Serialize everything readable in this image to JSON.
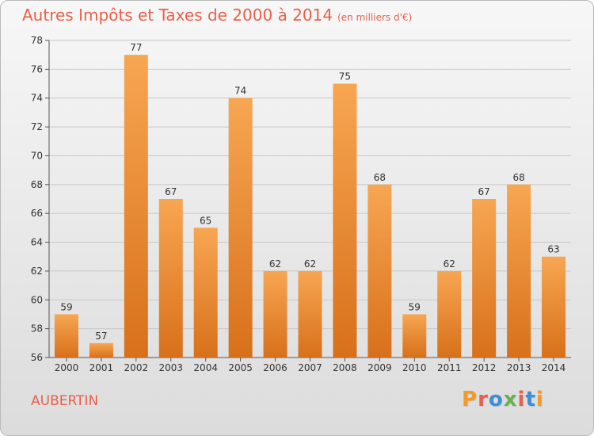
{
  "title": {
    "main": "Autres Impôts et Taxes de 2000 à 2014",
    "unit": "(en milliers d'€)"
  },
  "commune": "AUBERTIN",
  "logo": {
    "text": "Proxiti",
    "colors": [
      "#f09a28",
      "#e8604a",
      "#3a8fd6",
      "#6ab04c",
      "#e8604a",
      "#3a8fd6",
      "#f09a28"
    ]
  },
  "colors": {
    "bar_top": "#f7a652",
    "bar_bottom": "#d8701a",
    "title": "#e8604a",
    "axis": "#555555",
    "grid": "#c8c8c8"
  },
  "chart_data": {
    "type": "bar",
    "categories": [
      "2000",
      "2001",
      "2002",
      "2003",
      "2004",
      "2005",
      "2006",
      "2007",
      "2008",
      "2009",
      "2010",
      "2011",
      "2012",
      "2013",
      "2014"
    ],
    "values": [
      59,
      57,
      77,
      67,
      65,
      74,
      62,
      62,
      75,
      68,
      59,
      62,
      67,
      68,
      63
    ],
    "title": "Autres Impôts et Taxes de 2000 à 2014",
    "xlabel": "",
    "ylabel": "",
    "ylim": [
      56,
      78
    ],
    "yticks": [
      56,
      58,
      60,
      62,
      64,
      66,
      68,
      70,
      72,
      74,
      76,
      78
    ],
    "grid": true,
    "data_labels": true
  }
}
